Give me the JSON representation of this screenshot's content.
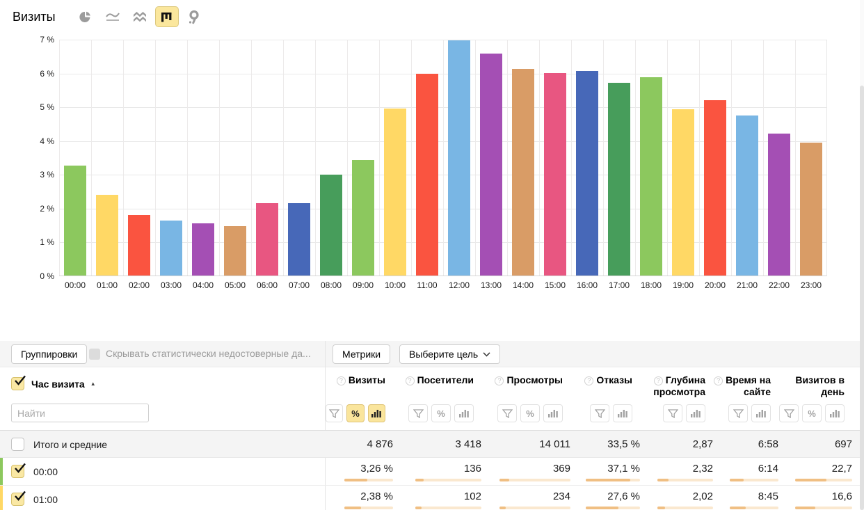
{
  "header": {
    "title": "Визиты",
    "chart_type_icons": [
      "pie-chart",
      "line-chart",
      "area-chart",
      "bar-chart",
      "map"
    ],
    "selected_chart_type": "bar-chart"
  },
  "chart_data": {
    "type": "bar",
    "title": "Визиты",
    "categories": [
      "00:00",
      "01:00",
      "02:00",
      "03:00",
      "04:00",
      "05:00",
      "06:00",
      "07:00",
      "08:00",
      "09:00",
      "10:00",
      "11:00",
      "12:00",
      "13:00",
      "14:00",
      "15:00",
      "16:00",
      "17:00",
      "18:00",
      "19:00",
      "20:00",
      "21:00",
      "22:00",
      "23:00"
    ],
    "values": [
      3.26,
      2.38,
      1.8,
      1.62,
      1.55,
      1.47,
      2.14,
      2.14,
      2.98,
      3.42,
      4.95,
      5.97,
      6.95,
      6.57,
      6.11,
      5.99,
      6.06,
      5.7,
      5.86,
      4.93,
      5.18,
      4.74,
      4.19,
      3.93
    ],
    "unit": "%",
    "xlabel": "",
    "ylabel": "",
    "ylim": [
      0,
      7
    ],
    "ytick_suffix": " %",
    "grid": true,
    "legend": "none",
    "palette": [
      "#8CC85E",
      "#FFD865",
      "#FA5440",
      "#79B6E4",
      "#A44FB4",
      "#D99C66",
      "#E85681",
      "#4768B8",
      "#479D5B"
    ]
  },
  "toolbar": {
    "groupings_label": "Группировки",
    "hide_label": "Скрывать статистически недостоверные да...",
    "metrics_label": "Метрики",
    "goal_label": "Выберите цель"
  },
  "dimension": {
    "label": "Час визита",
    "sort": "asc",
    "search_placeholder": "Найти"
  },
  "table": {
    "columns": [
      {
        "key": "visits",
        "label": "Визиты",
        "help": true,
        "filters": [
          "funnel",
          "percent",
          "bars"
        ],
        "active_filters": [
          "percent",
          "bars"
        ]
      },
      {
        "key": "visitors",
        "label": "Посетители",
        "help": true,
        "filters": [
          "funnel",
          "percent",
          "bars"
        ],
        "active_filters": []
      },
      {
        "key": "views",
        "label": "Просмотры",
        "help": true,
        "filters": [
          "funnel",
          "percent",
          "bars"
        ],
        "active_filters": []
      },
      {
        "key": "bounce",
        "label": "Отказы",
        "help": true,
        "filters": [
          "funnel",
          "bars"
        ],
        "active_filters": []
      },
      {
        "key": "depth",
        "label": "Глубина просмотра",
        "help": true,
        "filters": [
          "funnel",
          "bars"
        ],
        "active_filters": []
      },
      {
        "key": "time-on-site",
        "label": "Время на сайте",
        "help": true,
        "filters": [
          "funnel",
          "bars"
        ],
        "active_filters": []
      },
      {
        "key": "visits-per-day",
        "label": "Визитов в день",
        "help": false,
        "filters": [
          "funnel",
          "percent",
          "bars"
        ],
        "active_filters": []
      }
    ],
    "totals": {
      "label": "Итого и средние",
      "checked": false,
      "values": [
        "4 876",
        "3 418",
        "14 011",
        "33,5 %",
        "2,87",
        "6:58",
        "697"
      ]
    },
    "rows": [
      {
        "label": "00:00",
        "checked": true,
        "stripe_color": "#8CC85E",
        "values": [
          "3,26 %",
          "136",
          "369",
          "37,1 %",
          "2,32",
          "6:14",
          "22,7"
        ],
        "bar_fills": [
          0.47,
          0.13,
          0.14,
          0.82,
          0.2,
          0.28,
          0.55
        ]
      },
      {
        "label": "01:00",
        "checked": true,
        "stripe_color": "#FFD865",
        "values": [
          "2,38 %",
          "102",
          "234",
          "27,6 %",
          "2,02",
          "8:45",
          "16,6"
        ],
        "bar_fills": [
          0.34,
          0.09,
          0.09,
          0.6,
          0.14,
          0.33,
          0.35
        ]
      }
    ],
    "progress_colors": {
      "track": "#FAE8CF",
      "fill": "#F0BF83"
    }
  }
}
